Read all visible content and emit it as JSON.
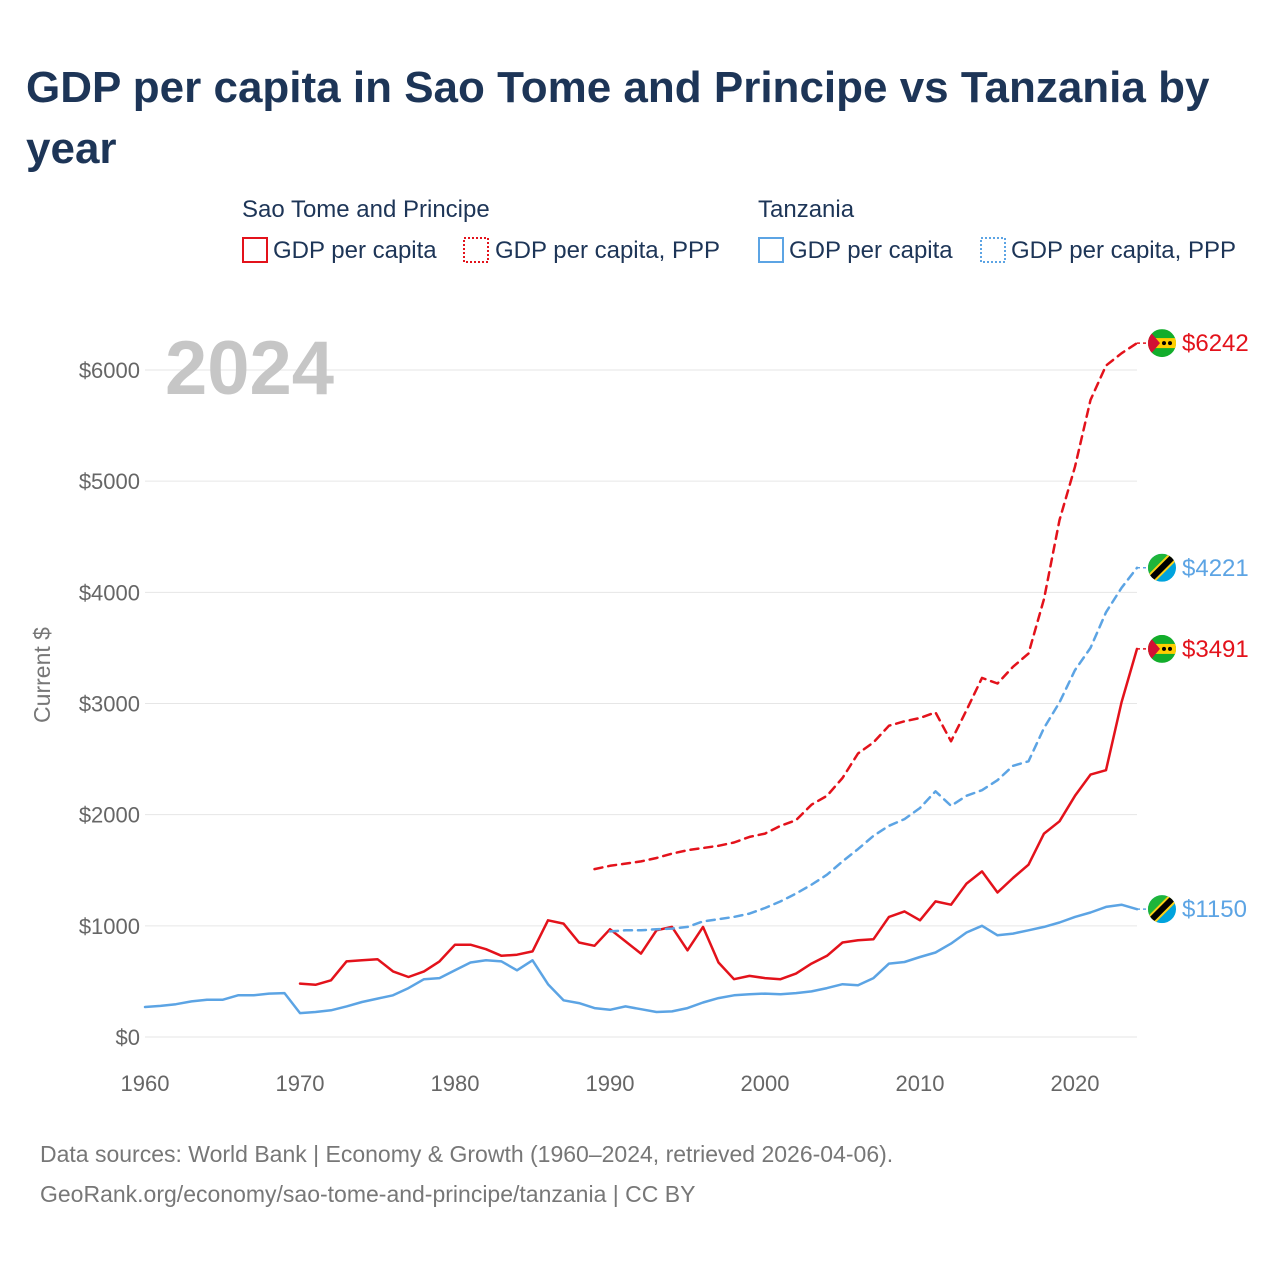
{
  "chart_data": {
    "type": "line",
    "title": "GDP per capita in Sao Tome and Principe vs Tanzania by year",
    "ylabel": "Current $",
    "xlim": [
      1960,
      2024
    ],
    "ylim": [
      0,
      6500
    ],
    "x_ticks": [
      1960,
      1970,
      1980,
      1990,
      2000,
      2010,
      2020
    ],
    "x_tick_labels": [
      "1960",
      "1970",
      "1980",
      "1990",
      "2000",
      "2010",
      "2020"
    ],
    "y_ticks": [
      0,
      1000,
      2000,
      3000,
      4000,
      5000,
      6000
    ],
    "y_tick_labels": [
      "$0",
      "$1000",
      "$2000",
      "$3000",
      "$4000",
      "$5000",
      "$6000"
    ],
    "year_label": "2024",
    "legend": {
      "groups": [
        {
          "name": "Sao Tome and Principe",
          "items": [
            "GDP per capita",
            "GDP per capita, PPP"
          ]
        },
        {
          "name": "Tanzania",
          "items": [
            "GDP per capita",
            "GDP per capita, PPP"
          ]
        }
      ]
    },
    "colors": {
      "stp": "#e3121b",
      "tza": "#5ca4e4"
    },
    "series": [
      {
        "name": "Sao Tome and Principe - GDP per capita",
        "country": "stp",
        "style": "solid",
        "end_label": "$3491",
        "start_year": 1970,
        "values": [
          480,
          470,
          510,
          680,
          690,
          700,
          590,
          540,
          590,
          680,
          830,
          830,
          790,
          730,
          740,
          770,
          1050,
          1020,
          850,
          820,
          970,
          860,
          750,
          960,
          990,
          780,
          990,
          670,
          520,
          550,
          530,
          520,
          570,
          660,
          730,
          850,
          870,
          880,
          1080,
          1130,
          1050,
          1220,
          1190,
          1380,
          1490,
          1300,
          1430,
          1550,
          1830,
          1940,
          2170,
          2360,
          2400,
          3010,
          3491
        ]
      },
      {
        "name": "Sao Tome and Principe - GDP per capita, PPP",
        "country": "stp",
        "style": "dashed",
        "end_label": "$6242",
        "start_year": 1989,
        "values": [
          1510,
          1540,
          1560,
          1580,
          1610,
          1650,
          1680,
          1700,
          1720,
          1750,
          1800,
          1830,
          1900,
          1950,
          2090,
          2170,
          2330,
          2550,
          2650,
          2800,
          2840,
          2870,
          2920,
          2660,
          2940,
          3230,
          3180,
          3330,
          3450,
          3940,
          4650,
          5130,
          5730,
          6040,
          6150,
          6242
        ]
      },
      {
        "name": "Tanzania - GDP per capita",
        "country": "tza",
        "style": "solid",
        "end_label": "$1150",
        "start_year": 1960,
        "values": [
          270,
          280,
          295,
          320,
          335,
          335,
          375,
          375,
          390,
          395,
          215,
          225,
          240,
          275,
          315,
          345,
          375,
          440,
          520,
          530,
          600,
          670,
          690,
          680,
          600,
          690,
          475,
          330,
          305,
          260,
          245,
          275,
          250,
          225,
          230,
          260,
          310,
          350,
          375,
          385,
          390,
          385,
          395,
          410,
          440,
          475,
          465,
          530,
          660,
          675,
          720,
          760,
          840,
          940,
          1000,
          915,
          930,
          960,
          990,
          1030,
          1080,
          1120,
          1170,
          1190,
          1150
        ]
      },
      {
        "name": "Tanzania - GDP per capita, PPP",
        "country": "tza",
        "style": "dashed",
        "end_label": "$4221",
        "start_year": 1990,
        "values": [
          950,
          960,
          960,
          970,
          975,
          990,
          1040,
          1060,
          1080,
          1110,
          1160,
          1220,
          1290,
          1370,
          1460,
          1580,
          1690,
          1810,
          1900,
          1960,
          2060,
          2210,
          2080,
          2170,
          2220,
          2310,
          2440,
          2480,
          2780,
          3010,
          3300,
          3500,
          3820,
          4040,
          4221
        ]
      }
    ]
  },
  "footer": {
    "source_line1": "Data sources: World Bank | Economy & Growth (1960–2024, retrieved 2026-04-06).",
    "source_line2": "GeoRank.org/economy/sao-tome-and-principe/tanzania | CC BY"
  }
}
